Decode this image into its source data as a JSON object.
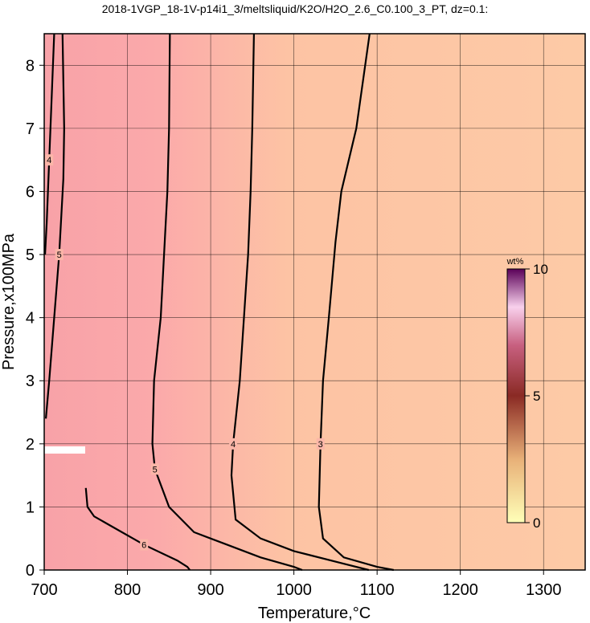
{
  "chart_data": {
    "type": "contour",
    "title": "2018-1VGP_18-1V-p14i1_3/meltsliquid/K2O/H2O_2.6_C0.100_3_PT, dz=0.1:",
    "x_label": "Temperature,°C",
    "y_label": "Pressure,x100MPa",
    "xlim": [
      700,
      1350
    ],
    "ylim": [
      0,
      8.5
    ],
    "xticks": [
      700,
      800,
      900,
      1000,
      1100,
      1200,
      1300
    ],
    "yticks": [
      0,
      1,
      2,
      3,
      4,
      5,
      6,
      7,
      8
    ],
    "grid": true,
    "contours": [
      {
        "level": 3,
        "x": [
          1091,
          1075,
          1057,
          1050,
          1042,
          1035,
          1032,
          1030,
          1035,
          1060,
          1100,
          1120
        ],
        "y": [
          8.5,
          7,
          6,
          5.2,
          4,
          3,
          2,
          1,
          0.5,
          0.2,
          0.05,
          0
        ]
      },
      {
        "level": 4,
        "x": [
          952,
          950,
          948,
          945,
          940,
          935,
          927,
          925,
          930,
          960,
          1000,
          1060,
          1090
        ],
        "y": [
          8.5,
          7,
          6,
          5,
          4,
          3,
          2,
          1.5,
          0.8,
          0.5,
          0.3,
          0.1,
          0
        ]
      },
      {
        "level": 5,
        "x": [
          851,
          850,
          848,
          840,
          832,
          830,
          833,
          850,
          880,
          920,
          960,
          1000,
          1010
        ],
        "y": [
          8.5,
          7,
          6,
          4,
          3,
          2,
          1.6,
          1,
          0.6,
          0.4,
          0.2,
          0.05,
          0
        ]
      },
      {
        "level": 5,
        "x": [
          722,
          724,
          723,
          718,
          712,
          706,
          702
        ],
        "y": [
          8.5,
          7,
          6.2,
          5,
          4,
          3,
          2.4
        ]
      },
      {
        "level": 6,
        "x": [
          750,
          752,
          760,
          780,
          820,
          860,
          872,
          875
        ],
        "y": [
          1.3,
          1,
          0.85,
          0.7,
          0.4,
          0.15,
          0.05,
          0
        ]
      },
      {
        "level": 4,
        "x": [
          712,
          709,
          706,
          703,
          701
        ],
        "y": [
          8.5,
          7.5,
          6.5,
          5.5,
          5
        ]
      }
    ],
    "colorbar": {
      "label": "wt%",
      "lim": [
        0,
        10
      ],
      "ticks": [
        0,
        5,
        10
      ]
    }
  }
}
